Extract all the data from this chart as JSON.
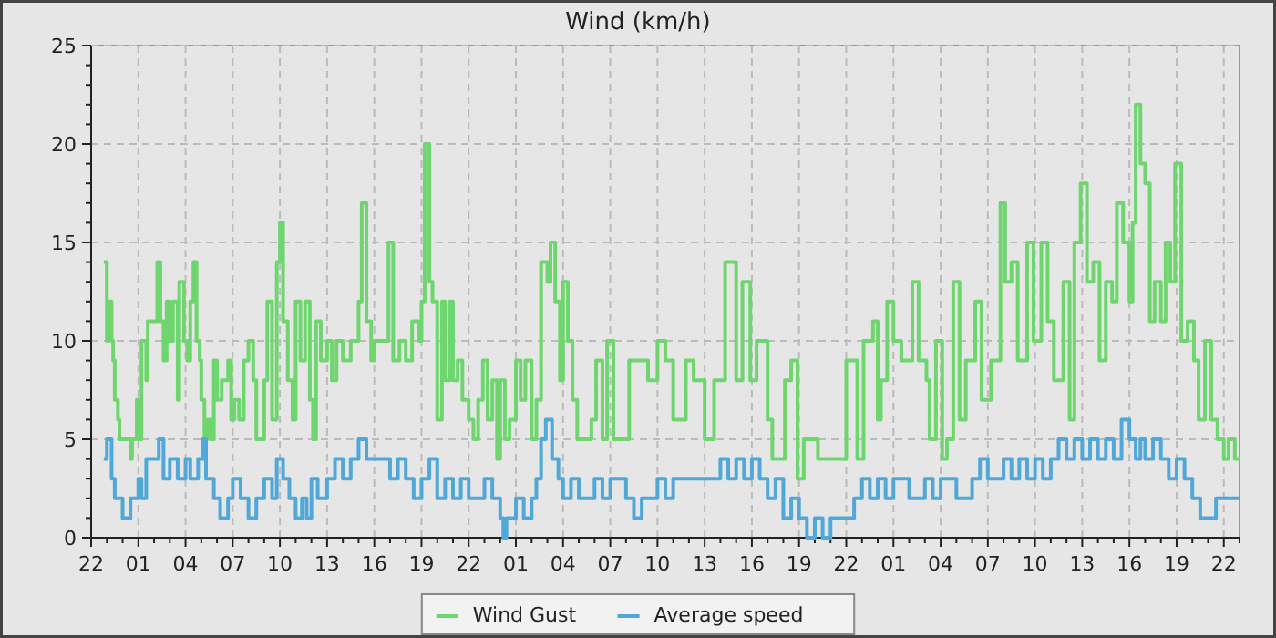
{
  "chart_data": {
    "type": "step",
    "title": "Wind (km/h)",
    "xlim": [
      "--01-01T22:00",
      "--01-04T23:00"
    ],
    "ylim": [
      0,
      25
    ],
    "xticks": [
      {
        "value": "--01-01T22:00",
        "label": "22"
      },
      {
        "value": "--01-01T23:00",
        "label": null
      },
      {
        "value": "--01-02T00:00",
        "label": null
      },
      {
        "value": "--01-02T01:00",
        "label": "01"
      },
      {
        "value": "--01-02T02:00",
        "label": null
      },
      {
        "value": "--01-02T03:00",
        "label": null
      },
      {
        "value": "--01-02T04:00",
        "label": "04"
      },
      {
        "value": "--01-02T05:00",
        "label": null
      },
      {
        "value": "--01-02T06:00",
        "label": null
      },
      {
        "value": "--01-02T07:00",
        "label": "07"
      },
      {
        "value": "--01-02T08:00",
        "label": null
      },
      {
        "value": "--01-02T09:00",
        "label": null
      },
      {
        "value": "--01-02T10:00",
        "label": "10"
      },
      {
        "value": "--01-02T11:00",
        "label": null
      },
      {
        "value": "--01-02T12:00",
        "label": null
      },
      {
        "value": "--01-02T13:00",
        "label": "13"
      },
      {
        "value": "--01-02T14:00",
        "label": null
      },
      {
        "value": "--01-02T15:00",
        "label": null
      },
      {
        "value": "--01-02T16:00",
        "label": "16"
      },
      {
        "value": "--01-02T17:00",
        "label": null
      },
      {
        "value": "--01-02T18:00",
        "label": null
      },
      {
        "value": "--01-02T19:00",
        "label": "19"
      },
      {
        "value": "--01-02T20:00",
        "label": null
      },
      {
        "value": "--01-02T21:00",
        "label": null
      },
      {
        "value": "--01-02T22:00",
        "label": "22"
      },
      {
        "value": "--01-02T23:00",
        "label": null
      },
      {
        "value": "--01-03T00:00",
        "label": null
      },
      {
        "value": "--01-03T01:00",
        "label": "01"
      },
      {
        "value": "--01-03T02:00",
        "label": null
      },
      {
        "value": "--01-03T03:00",
        "label": null
      },
      {
        "value": "--01-03T04:00",
        "label": "04"
      },
      {
        "value": "--01-03T05:00",
        "label": null
      },
      {
        "value": "--01-03T06:00",
        "label": null
      },
      {
        "value": "--01-03T07:00",
        "label": "07"
      },
      {
        "value": "--01-03T08:00",
        "label": null
      },
      {
        "value": "--01-03T09:00",
        "label": null
      },
      {
        "value": "--01-03T10:00",
        "label": "10"
      },
      {
        "value": "--01-03T11:00",
        "label": null
      },
      {
        "value": "--01-03T12:00",
        "label": null
      },
      {
        "value": "--01-03T13:00",
        "label": "13"
      },
      {
        "value": "--01-03T14:00",
        "label": null
      },
      {
        "value": "--01-03T15:00",
        "label": null
      },
      {
        "value": "--01-03T16:00",
        "label": "16"
      },
      {
        "value": "--01-03T17:00",
        "label": null
      },
      {
        "value": "--01-03T18:00",
        "label": null
      },
      {
        "value": "--01-03T19:00",
        "label": "19"
      },
      {
        "value": "--01-03T20:00",
        "label": null
      },
      {
        "value": "--01-03T21:00",
        "label": null
      },
      {
        "value": "--01-03T22:00",
        "label": "22"
      },
      {
        "value": "--01-03T23:00",
        "label": null
      },
      {
        "value": "--01-04T00:00",
        "label": null
      },
      {
        "value": "--01-04T01:00",
        "label": "01"
      },
      {
        "value": "--01-04T02:00",
        "label": null
      },
      {
        "value": "--01-04T03:00",
        "label": null
      },
      {
        "value": "--01-04T04:00",
        "label": "04"
      },
      {
        "value": "--01-04T05:00",
        "label": null
      },
      {
        "value": "--01-04T06:00",
        "label": null
      },
      {
        "value": "--01-04T07:00",
        "label": "07"
      },
      {
        "value": "--01-04T08:00",
        "label": null
      },
      {
        "value": "--01-04T09:00",
        "label": null
      },
      {
        "value": "--01-04T10:00",
        "label": "10"
      },
      {
        "value": "--01-04T11:00",
        "label": null
      },
      {
        "value": "--01-04T12:00",
        "label": null
      },
      {
        "value": "--01-04T13:00",
        "label": "13"
      },
      {
        "value": "--01-04T14:00",
        "label": null
      },
      {
        "value": "--01-04T15:00",
        "label": null
      },
      {
        "value": "--01-04T16:00",
        "label": "16"
      },
      {
        "value": "--01-04T17:00",
        "label": null
      },
      {
        "value": "--01-04T18:00",
        "label": null
      },
      {
        "value": "--01-04T19:00",
        "label": "19"
      },
      {
        "value": "--01-04T20:00",
        "label": null
      },
      {
        "value": "--01-04T21:00",
        "label": null
      },
      {
        "value": "--01-04T22:00",
        "label": "22"
      },
      {
        "value": "--01-04T23:00",
        "label": null
      }
    ],
    "yticks": [
      0,
      {
        "value": 1,
        "label": null
      },
      {
        "value": 2,
        "label": null
      },
      {
        "value": 3,
        "label": null
      },
      {
        "value": 4,
        "label": null
      },
      5,
      {
        "value": 6,
        "label": null
      },
      {
        "value": 7,
        "label": null
      },
      {
        "value": 8,
        "label": null
      },
      {
        "value": 9,
        "label": null
      },
      10,
      {
        "value": 11,
        "label": null
      },
      {
        "value": 12,
        "label": null
      },
      {
        "value": 13,
        "label": null
      },
      {
        "value": 14,
        "label": null
      },
      15,
      {
        "value": 16,
        "label": null
      },
      {
        "value": 17,
        "label": null
      },
      {
        "value": 18,
        "label": null
      },
      {
        "value": 19,
        "label": null
      },
      20,
      {
        "value": 21,
        "label": null
      },
      {
        "value": 22,
        "label": null
      },
      {
        "value": 23,
        "label": null
      },
      {
        "value": 24,
        "label": null
      },
      25
    ],
    "grid": true,
    "legend": "bottom",
    "line_style": "solid",
    "marker": "none",
    "series": [
      {
        "name": "Wind Gust",
        "color": "#6fd66f",
        "x": [
          "--01-01T22:48",
          "--01-01T23:00",
          "--01-01T23:06",
          "--01-01T23:18",
          "--01-01T23:24",
          "--01-01T23:30",
          "--01-01T23:42",
          "--01-01T23:48",
          "--01-02T00:30",
          "--01-02T00:36",
          "--01-02T00:54",
          "--01-02T01:00",
          "--01-02T01:12",
          "--01-02T01:30",
          "--01-02T01:36",
          "--01-02T02:00",
          "--01-02T02:12",
          "--01-02T02:24",
          "--01-02T02:36",
          "--01-02T02:48",
          "--01-02T03:00",
          "--01-02T03:12",
          "--01-02T03:30",
          "--01-02T03:36",
          "--01-02T03:54",
          "--01-02T04:06",
          "--01-02T04:18",
          "--01-02T04:30",
          "--01-02T04:42",
          "--01-02T04:54",
          "--01-02T05:00",
          "--01-02T05:12",
          "--01-02T05:24",
          "--01-02T05:36",
          "--01-02T05:48",
          "--01-02T06:00",
          "--01-02T06:18",
          "--01-02T06:42",
          "--01-02T06:54",
          "--01-02T07:06",
          "--01-02T07:24",
          "--01-02T07:42",
          "--01-02T08:00",
          "--01-02T08:18",
          "--01-02T08:30",
          "--01-02T09:00",
          "--01-02T09:12",
          "--01-02T09:30",
          "--01-02T09:48",
          "--01-02T10:00",
          "--01-02T10:12",
          "--01-02T10:30",
          "--01-02T10:48",
          "--01-02T11:00",
          "--01-02T11:18",
          "--01-02T11:36",
          "--01-02T11:54",
          "--01-02T12:06",
          "--01-02T12:18",
          "--01-02T12:36",
          "--01-02T13:00",
          "--01-02T13:18",
          "--01-02T13:36",
          "--01-02T14:00",
          "--01-02T14:30",
          "--01-02T15:00",
          "--01-02T15:12",
          "--01-02T15:30",
          "--01-02T15:48",
          "--01-02T16:00",
          "--01-02T16:30",
          "--01-02T16:54",
          "--01-02T17:12",
          "--01-02T17:36",
          "--01-02T18:00",
          "--01-02T18:24",
          "--01-02T18:48",
          "--01-02T19:00",
          "--01-02T19:12",
          "--01-02T19:30",
          "--01-02T19:42",
          "--01-02T20:00",
          "--01-02T20:18",
          "--01-02T20:30",
          "--01-02T20:48",
          "--01-02T21:00",
          "--01-02T21:18",
          "--01-02T21:36",
          "--01-02T22:00",
          "--01-02T22:18",
          "--01-02T22:36",
          "--01-02T22:54",
          "--01-02T23:12",
          "--01-02T23:30",
          "--01-02T23:48",
          "--01-03T00:00",
          "--01-03T00:18",
          "--01-03T00:36",
          "--01-03T01:00",
          "--01-03T01:18",
          "--01-03T01:36",
          "--01-03T02:00",
          "--01-03T02:18",
          "--01-03T02:36",
          "--01-03T03:00",
          "--01-03T03:12",
          "--01-03T03:30",
          "--01-03T03:48",
          "--01-03T04:00",
          "--01-03T04:18",
          "--01-03T04:36",
          "--01-03T04:54",
          "--01-03T05:24",
          "--01-03T05:48",
          "--01-03T06:06",
          "--01-03T06:30",
          "--01-03T06:48",
          "--01-03T07:12",
          "--01-03T08:12",
          "--01-03T09:24",
          "--01-03T10:00",
          "--01-03T10:30",
          "--01-03T11:00",
          "--01-03T11:48",
          "--01-03T12:18",
          "--01-03T13:00",
          "--01-03T13:36",
          "--01-03T14:18",
          "--01-03T15:00",
          "--01-03T15:24",
          "--01-03T15:54",
          "--01-03T16:18",
          "--01-03T17:00",
          "--01-03T17:18",
          "--01-03T18:06",
          "--01-03T18:30",
          "--01-03T18:54",
          "--01-03T19:18",
          "--01-03T20:12",
          "--01-03T21:12",
          "--01-03T22:00",
          "--01-03T22:42",
          "--01-03T23:06",
          "--01-03T23:42",
          "--01-04T00:00",
          "--01-04T00:12",
          "--01-04T00:36",
          "--01-04T01:00",
          "--01-04T01:30",
          "--01-04T02:12",
          "--01-04T02:36",
          "--01-04T03:06",
          "--01-04T03:18",
          "--01-04T03:42",
          "--01-04T04:06",
          "--01-04T04:24",
          "--01-04T04:48",
          "--01-04T05:12",
          "--01-04T05:36",
          "--01-04T06:12",
          "--01-04T06:36",
          "--01-04T07:12",
          "--01-04T07:48",
          "--01-04T08:06",
          "--01-04T08:30",
          "--01-04T08:54",
          "--01-04T09:30",
          "--01-04T09:54",
          "--01-04T10:24",
          "--01-04T10:48",
          "--01-04T11:12",
          "--01-04T11:48",
          "--01-04T12:12",
          "--01-04T12:30",
          "--01-04T12:54",
          "--01-04T13:18",
          "--01-04T13:42",
          "--01-04T14:06",
          "--01-04T14:30",
          "--01-04T14:54",
          "--01-04T15:12",
          "--01-04T15:36",
          "--01-04T16:00",
          "--01-04T16:12",
          "--01-04T16:24",
          "--01-04T16:42",
          "--01-04T17:00",
          "--01-04T17:18",
          "--01-04T17:36",
          "--01-04T18:00",
          "--01-04T18:18",
          "--01-04T18:36",
          "--01-04T18:54",
          "--01-04T19:18",
          "--01-04T19:42",
          "--01-04T20:06",
          "--01-04T20:24",
          "--01-04T20:48",
          "--01-04T21:12",
          "--01-04T21:36",
          "--01-04T22:00",
          "--01-04T22:18",
          "--01-04T22:42",
          "--01-04T23:00"
        ],
        "values": [
          14,
          10,
          12,
          10,
          9,
          7,
          6,
          5,
          4,
          5,
          7,
          5,
          10,
          8,
          11,
          11,
          14,
          11,
          9,
          12,
          10,
          12,
          7,
          13,
          10,
          9,
          12,
          14,
          10,
          9,
          7,
          5,
          6,
          5,
          9,
          7,
          8,
          9,
          6,
          7,
          6,
          9,
          10,
          8,
          5,
          8,
          12,
          6,
          14,
          16,
          11,
          8,
          6,
          12,
          9,
          12,
          7,
          5,
          11,
          9,
          10,
          8,
          10,
          9,
          10,
          12,
          17,
          11,
          9,
          10,
          10,
          15,
          9,
          10,
          9,
          11,
          10,
          12,
          20,
          13,
          12,
          6,
          12,
          8,
          12,
          8,
          9,
          7,
          6,
          5,
          7,
          9,
          6,
          8,
          4,
          8,
          5,
          6,
          9,
          7,
          9,
          5,
          7,
          14,
          13,
          15,
          12,
          8,
          13,
          10,
          7,
          5,
          5,
          6,
          9,
          5,
          10,
          5,
          9,
          8,
          10,
          9,
          6,
          9,
          8,
          5,
          8,
          14,
          8,
          13,
          8,
          10,
          6,
          4,
          8,
          9,
          3,
          5,
          4,
          4,
          9,
          4,
          10,
          11,
          6,
          8,
          12,
          10,
          9,
          13,
          9,
          8,
          5,
          10,
          4,
          5,
          13,
          6,
          9,
          12,
          7,
          9,
          17,
          13,
          14,
          9,
          15,
          10,
          15,
          11,
          8,
          13,
          6,
          15,
          18,
          13,
          14,
          9,
          13,
          12,
          17,
          15,
          12,
          16,
          22,
          19,
          18,
          11,
          13,
          11,
          15,
          13,
          19,
          10,
          11,
          9,
          6,
          10,
          6,
          5,
          4,
          5,
          4,
          4
        ]
      },
      {
        "name": "Average speed",
        "color": "#4fa8d8",
        "x": [
          "--01-01T22:48",
          "--01-01T23:00",
          "--01-01T23:18",
          "--01-01T23:30",
          "--01-02T00:00",
          "--01-02T00:30",
          "--01-02T01:00",
          "--01-02T01:12",
          "--01-02T01:30",
          "--01-02T02:00",
          "--01-02T02:18",
          "--01-02T02:36",
          "--01-02T03:00",
          "--01-02T03:30",
          "--01-02T04:00",
          "--01-02T04:18",
          "--01-02T04:48",
          "--01-02T05:06",
          "--01-02T05:18",
          "--01-02T05:48",
          "--01-02T06:12",
          "--01-02T06:42",
          "--01-02T07:00",
          "--01-02T07:30",
          "--01-02T08:00",
          "--01-02T08:30",
          "--01-02T09:00",
          "--01-02T09:30",
          "--01-02T09:48",
          "--01-02T10:12",
          "--01-02T10:36",
          "--01-02T11:00",
          "--01-02T11:24",
          "--01-02T11:42",
          "--01-02T12:00",
          "--01-02T12:24",
          "--01-02T13:00",
          "--01-02T13:30",
          "--01-02T14:00",
          "--01-02T14:30",
          "--01-02T15:00",
          "--01-02T15:30",
          "--01-02T16:00",
          "--01-02T17:00",
          "--01-02T17:30",
          "--01-02T18:00",
          "--01-02T18:30",
          "--01-02T19:00",
          "--01-02T19:30",
          "--01-02T20:00",
          "--01-02T20:30",
          "--01-02T21:00",
          "--01-02T21:30",
          "--01-02T22:00",
          "--01-02T23:00",
          "--01-02T23:30",
          "--01-03T00:00",
          "--01-03T00:12",
          "--01-03T00:24",
          "--01-03T01:00",
          "--01-03T01:30",
          "--01-03T02:00",
          "--01-03T02:18",
          "--01-03T02:36",
          "--01-03T02:54",
          "--01-03T03:18",
          "--01-03T03:42",
          "--01-03T04:00",
          "--01-03T04:30",
          "--01-03T05:00",
          "--01-03T06:00",
          "--01-03T06:30",
          "--01-03T07:00",
          "--01-03T08:00",
          "--01-03T08:30",
          "--01-03T09:00",
          "--01-03T10:00",
          "--01-03T10:30",
          "--01-03T11:00",
          "--01-03T12:00",
          "--01-03T13:00",
          "--01-03T14:00",
          "--01-03T14:30",
          "--01-03T15:00",
          "--01-03T15:30",
          "--01-03T16:00",
          "--01-03T16:30",
          "--01-03T17:00",
          "--01-03T17:30",
          "--01-03T18:00",
          "--01-03T18:30",
          "--01-03T19:00",
          "--01-03T19:30",
          "--01-03T20:00",
          "--01-03T20:30",
          "--01-03T21:00",
          "--01-03T22:00",
          "--01-03T22:30",
          "--01-03T23:00",
          "--01-03T23:30",
          "--01-04T00:00",
          "--01-04T00:30",
          "--01-04T01:00",
          "--01-04T01:30",
          "--01-04T02:00",
          "--01-04T03:00",
          "--01-04T03:30",
          "--01-04T04:00",
          "--01-04T04:30",
          "--01-04T05:00",
          "--01-04T06:00",
          "--01-04T06:30",
          "--01-04T07:00",
          "--01-04T08:00",
          "--01-04T08:30",
          "--01-04T09:00",
          "--01-04T09:30",
          "--01-04T10:00",
          "--01-04T10:30",
          "--01-04T11:00",
          "--01-04T11:30",
          "--01-04T12:00",
          "--01-04T12:30",
          "--01-04T13:00",
          "--01-04T13:30",
          "--01-04T14:00",
          "--01-04T14:30",
          "--01-04T15:00",
          "--01-04T15:30",
          "--01-04T16:00",
          "--01-04T16:24",
          "--01-04T16:42",
          "--01-04T17:00",
          "--01-04T17:30",
          "--01-04T18:00",
          "--01-04T18:30",
          "--01-04T19:00",
          "--01-04T19:30",
          "--01-04T20:00",
          "--01-04T20:30",
          "--01-04T21:00",
          "--01-04T21:30",
          "--01-04T22:00",
          "--01-04T22:30",
          "--01-04T23:00"
        ],
        "values": [
          4,
          5,
          3,
          2,
          1,
          2,
          3,
          2,
          4,
          4,
          5,
          3,
          4,
          3,
          4,
          3,
          4,
          5,
          3,
          2,
          1,
          2,
          3,
          2,
          1,
          2,
          3,
          2,
          4,
          3,
          2,
          1,
          2,
          1,
          3,
          2,
          3,
          4,
          3,
          4,
          5,
          4,
          4,
          3,
          4,
          3,
          2,
          3,
          4,
          2,
          3,
          2,
          3,
          2,
          3,
          2,
          1,
          0,
          1,
          2,
          1,
          2,
          3,
          5,
          6,
          4,
          3,
          2,
          3,
          2,
          3,
          2,
          3,
          2,
          1,
          2,
          3,
          2,
          3,
          3,
          3,
          4,
          3,
          4,
          3,
          4,
          3,
          2,
          3,
          1,
          2,
          1,
          0,
          1,
          0,
          1,
          1,
          2,
          3,
          2,
          3,
          2,
          3,
          3,
          2,
          3,
          2,
          3,
          3,
          2,
          3,
          4,
          3,
          4,
          3,
          4,
          3,
          4,
          3,
          4,
          5,
          4,
          5,
          4,
          5,
          4,
          5,
          4,
          6,
          5,
          4,
          5,
          4,
          5,
          4,
          3,
          4,
          3,
          2,
          1,
          1,
          2,
          2,
          2,
          2
        ]
      }
    ]
  }
}
